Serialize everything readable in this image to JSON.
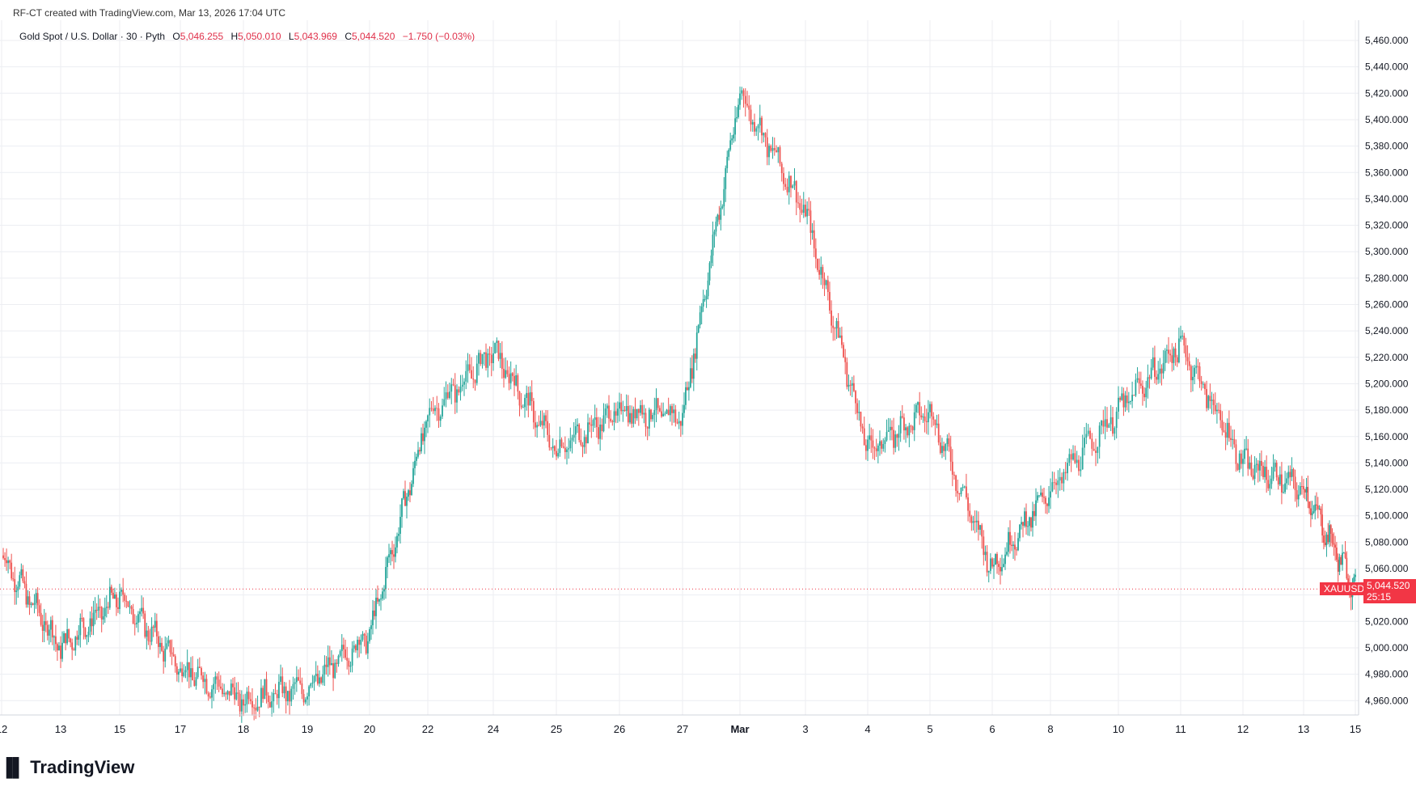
{
  "header": {
    "created": "RF-CT created with TradingView.com, Mar 13, 2026 17:04 UTC",
    "symbol": "Gold Spot / U.S. Dollar · 30 · Pyth",
    "open_label": "O",
    "open": "5,046.255",
    "high_label": "H",
    "high": "5,050.010",
    "low_label": "L",
    "low": "5,043.969",
    "close_label": "C",
    "close": "5,044.520",
    "change": "−1.750 (−0.03%)"
  },
  "logo": {
    "text": "TradingView"
  },
  "colors": {
    "up": "#26a69a",
    "down": "#ef5350",
    "grid": "#eceef2",
    "last": "#f23645",
    "text": "#131722"
  },
  "current": {
    "symbol": "XAUUSD",
    "price": "5,044.520",
    "countdown": "25:15",
    "value": 5044.52
  },
  "chart_data": {
    "type": "candlestick",
    "title": "Gold Spot / U.S. Dollar · 30 · Pyth",
    "ylim": [
      4950,
      5470
    ],
    "y_ticks": [
      4960,
      4980,
      5000,
      5020,
      5040,
      5060,
      5080,
      5100,
      5120,
      5140,
      5160,
      5180,
      5200,
      5220,
      5240,
      5260,
      5280,
      5300,
      5320,
      5340,
      5360,
      5380,
      5400,
      5420,
      5440,
      5460
    ],
    "y_tick_labels": [
      "4,960.000",
      "4,980.000",
      "5,000.000",
      "5,020.000",
      "5,040.000",
      "5,060.000",
      "5,080.000",
      "5,100.000",
      "5,120.000",
      "5,140.000",
      "5,160.000",
      "5,180.000",
      "5,200.000",
      "5,220.000",
      "5,240.000",
      "5,260.000",
      "5,280.000",
      "5,300.000",
      "5,320.000",
      "5,340.000",
      "5,360.000",
      "5,380.000",
      "5,400.000",
      "5,420.000",
      "5,440.000",
      "5,460.000"
    ],
    "x_labels": [
      "12",
      "13",
      "15",
      "17",
      "18",
      "19",
      "20",
      "22",
      "24",
      "25",
      "26",
      "27",
      "Mar",
      "3",
      "4",
      "5",
      "6",
      "8",
      "10",
      "11",
      "12",
      "13",
      "15"
    ],
    "price_path": [
      [
        "12",
        5070
      ],
      [
        "13",
        5000
      ],
      [
        "15",
        5040
      ],
      [
        "17",
        4985
      ],
      [
        "18",
        4960
      ],
      [
        "19",
        4970
      ],
      [
        "20",
        5010
      ],
      [
        "22",
        5175
      ],
      [
        "24",
        5225
      ],
      [
        "25",
        5150
      ],
      [
        "26",
        5180
      ],
      [
        "27",
        5175
      ],
      [
        "Mar",
        5420
      ],
      [
        "3",
        5330
      ],
      [
        "4",
        5150
      ],
      [
        "5",
        5180
      ],
      [
        "6",
        5060
      ],
      [
        "8",
        5120
      ],
      [
        "10",
        5180
      ],
      [
        "11",
        5230
      ],
      [
        "12",
        5140
      ],
      [
        "13",
        5120
      ],
      [
        "15",
        5044.52
      ]
    ],
    "grid": true
  }
}
